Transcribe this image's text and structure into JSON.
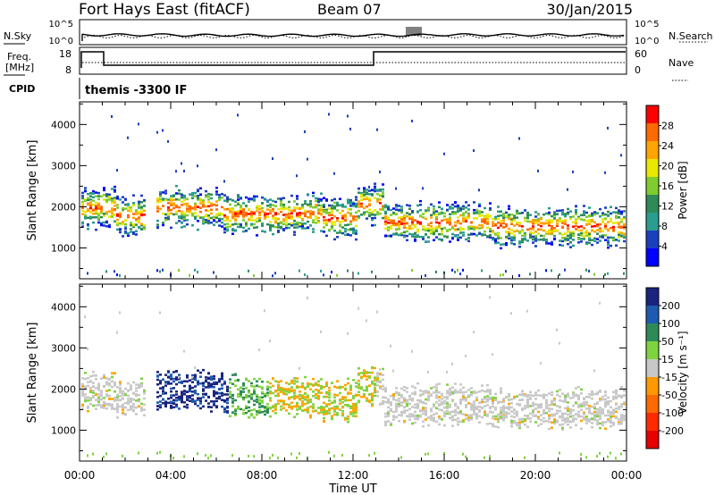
{
  "header": {
    "station": "Fort Hays East (fitACF)",
    "beam": "Beam 07",
    "date": "30/Jan/2015"
  },
  "params_panel": {
    "nsky_label": "N.Sky",
    "nsky_ticks": [
      "10^5",
      "10^0"
    ],
    "nsearch_label": "N.Search",
    "nsearch_ticks": [
      "10^5",
      "10^0"
    ],
    "freq_label": "Freq.",
    "freq_unit": "[MHz]",
    "freq_ticks": [
      "18",
      "8"
    ],
    "nave_label": "Nave",
    "nave_ticks": [
      "60",
      "0"
    ],
    "cpid_label": "CPID",
    "cpid_value": "themis -3300 IF"
  },
  "chart_data": [
    {
      "type": "heatmap",
      "name": "power",
      "ylabel": "Slant Range [km]",
      "yticks": [
        "1000",
        "2000",
        "3000",
        "4000"
      ],
      "ylim": [
        250,
        4550
      ],
      "colorbar_label": "Power [dB]",
      "colorbar_ticks": [
        "28",
        "24",
        "20",
        "16",
        "12",
        "8",
        "4"
      ],
      "colorbar_colors": [
        "#ff0000",
        "#ff6a00",
        "#ffa500",
        "#e8e800",
        "#7fcc2f",
        "#2e8b57",
        "#2a9d8f",
        "#1c3fbf",
        "#0000ff"
      ]
    },
    {
      "type": "heatmap",
      "name": "velocity",
      "ylabel": "Slant Range [km]",
      "yticks": [
        "1000",
        "2000",
        "3000",
        "4000"
      ],
      "ylim": [
        250,
        4550
      ],
      "xlabel": "Time UT",
      "xticks": [
        "00:00",
        "04:00",
        "08:00",
        "12:00",
        "16:00",
        "20:00",
        "00:00"
      ],
      "colorbar_label": "Velocity [m s⁻¹]",
      "colorbar_ticks": [
        "200",
        "100",
        "50",
        "15",
        "-15",
        "-50",
        "-100",
        "-200"
      ],
      "colorbar_colors": [
        "#1a237e",
        "#1e5bb0",
        "#2e8b57",
        "#7fd33f",
        "#c8c8c8",
        "#ff9900",
        "#ff6a00",
        "#ff2a00",
        "#e60000"
      ]
    }
  ]
}
